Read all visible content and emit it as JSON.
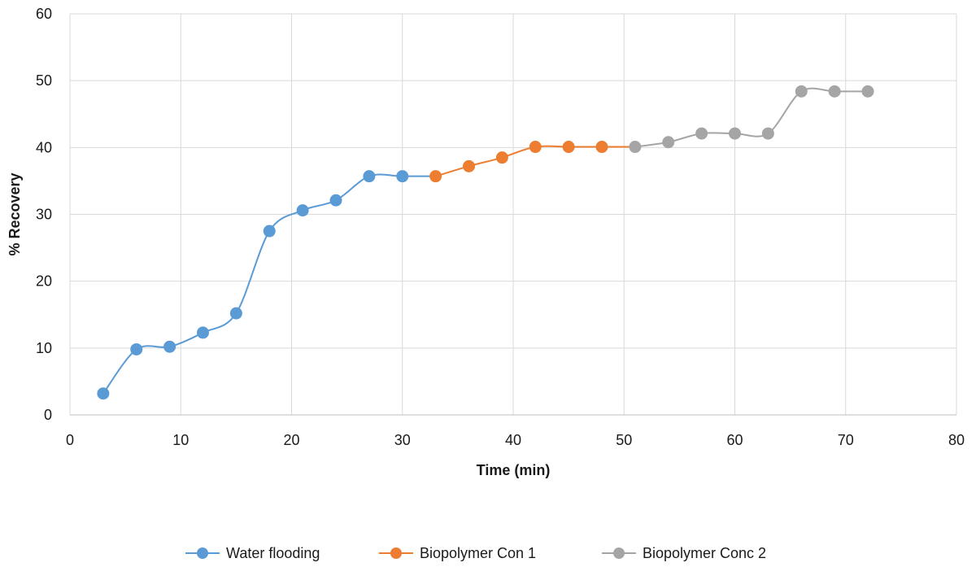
{
  "chart_data": {
    "type": "line",
    "title": "",
    "xlabel": "Time (min)",
    "ylabel": "% Recovery",
    "xlim": [
      0,
      80
    ],
    "ylim": [
      0,
      60
    ],
    "xticks": [
      0,
      10,
      20,
      30,
      40,
      50,
      60,
      70,
      80
    ],
    "yticks": [
      0,
      10,
      20,
      30,
      40,
      50,
      60
    ],
    "grid": true,
    "smooth": true,
    "legend_position": "bottom",
    "series": [
      {
        "name": "Water flooding",
        "color": "#5B9BD5",
        "x": [
          3,
          6,
          9,
          12,
          15,
          18,
          21,
          24,
          27,
          30,
          33
        ],
        "y": [
          3.2,
          9.8,
          10.2,
          12.3,
          15.2,
          27.5,
          30.6,
          32.1,
          35.7,
          35.7,
          35.7
        ],
        "markers_x": [
          3,
          6,
          9,
          12,
          15,
          18,
          21,
          24,
          27,
          30
        ],
        "markers_y": [
          3.2,
          9.8,
          10.2,
          12.3,
          15.2,
          27.5,
          30.6,
          32.1,
          35.7,
          35.7
        ]
      },
      {
        "name": "Biopolymer Con 1",
        "color": "#ED7D31",
        "x": [
          33,
          36,
          39,
          42,
          45,
          48,
          51
        ],
        "y": [
          35.7,
          37.2,
          38.5,
          40.1,
          40.1,
          40.1,
          40.1
        ],
        "markers_x": [
          33,
          36,
          39,
          42,
          45,
          48
        ],
        "markers_y": [
          35.7,
          37.2,
          38.5,
          40.1,
          40.1,
          40.1
        ]
      },
      {
        "name": "Biopolymer Conc 2",
        "color": "#A5A5A5",
        "x": [
          51,
          54,
          57,
          60,
          63,
          66,
          69,
          72
        ],
        "y": [
          40.1,
          40.8,
          42.1,
          42.1,
          42.1,
          48.4,
          48.4,
          48.4
        ],
        "markers_x": [
          51,
          54,
          57,
          60,
          63,
          66,
          69,
          72
        ],
        "markers_y": [
          40.1,
          40.8,
          42.1,
          42.1,
          42.1,
          48.4,
          48.4,
          48.4
        ]
      }
    ]
  }
}
